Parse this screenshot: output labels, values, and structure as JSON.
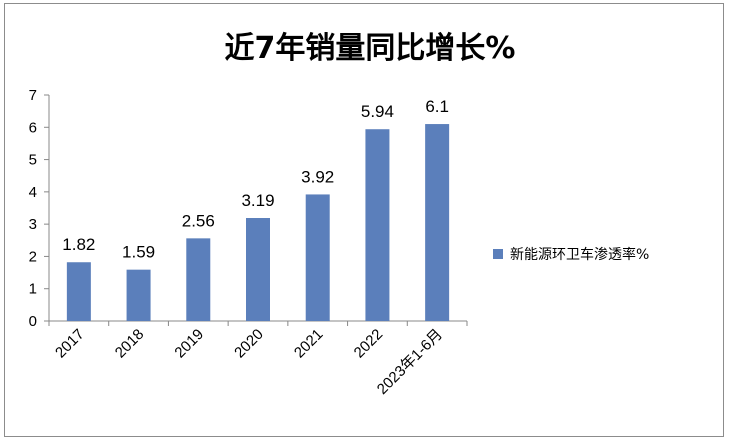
{
  "chart_data": {
    "type": "bar",
    "title": "近7年销量同比增长%",
    "categories": [
      "2017",
      "2018",
      "2019",
      "2020",
      "2021",
      "2022",
      "2023年1-6月"
    ],
    "series": [
      {
        "name": "新能源环卫车渗透率%",
        "values": [
          1.82,
          1.59,
          2.56,
          3.19,
          3.92,
          5.94,
          6.1
        ]
      }
    ],
    "data_labels": [
      "1.82",
      "1.59",
      "2.56",
      "3.19",
      "3.92",
      "5.94",
      "6.1"
    ],
    "yticks": [
      "0",
      "1",
      "2",
      "3",
      "4",
      "5",
      "6",
      "7"
    ],
    "ylim": [
      0,
      7
    ],
    "grid": false,
    "legend_position": "right",
    "colors": {
      "bar": "#5b7fbb",
      "axis": "#888888",
      "frame": "#8c8c8c"
    }
  }
}
